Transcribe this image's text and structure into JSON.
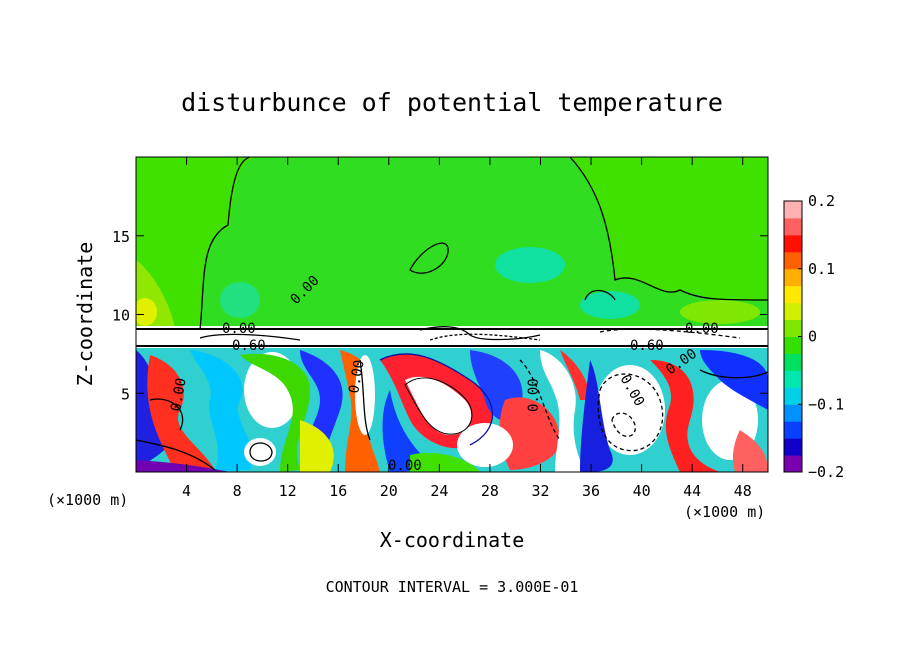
{
  "chart_data": {
    "type": "heatmap",
    "title": "disturbunce of potential temperature",
    "xlabel": "X-coordinate",
    "ylabel": "Z-coordinate",
    "x_unit_left": "(×1000 m)",
    "x_unit_right": "(×1000 m)",
    "xlim": [
      0,
      50
    ],
    "ylim": [
      0,
      20
    ],
    "xticks": [
      4,
      8,
      12,
      16,
      20,
      24,
      28,
      32,
      36,
      40,
      44,
      48
    ],
    "yticks": [
      5,
      10,
      15
    ],
    "colorbar": {
      "min": -0.2,
      "max": 0.2,
      "ticks": [
        "0.2",
        "0.1",
        "0",
        "−0.1",
        "−0.2"
      ],
      "tick_values": [
        0.2,
        0.1,
        0,
        -0.1,
        -0.2
      ],
      "colors": [
        "#7a00b0",
        "#1000c8",
        "#0a40ff",
        "#0090ff",
        "#00d0e8",
        "#00e8b0",
        "#00e060",
        "#34e000",
        "#80e800",
        "#d0f000",
        "#ffe800",
        "#ffb000",
        "#ff6000",
        "#ff1000",
        "#ff6060",
        "#ffb0b0"
      ]
    },
    "contour_labels": [
      "0.00",
      "0.00",
      "0.60",
      "0.60",
      "0.00",
      "0.00",
      "0.00",
      "0.00",
      "0.00",
      "0.00",
      "0.00"
    ],
    "footer": "CONTOUR INTERVAL = 3.000E-01"
  }
}
